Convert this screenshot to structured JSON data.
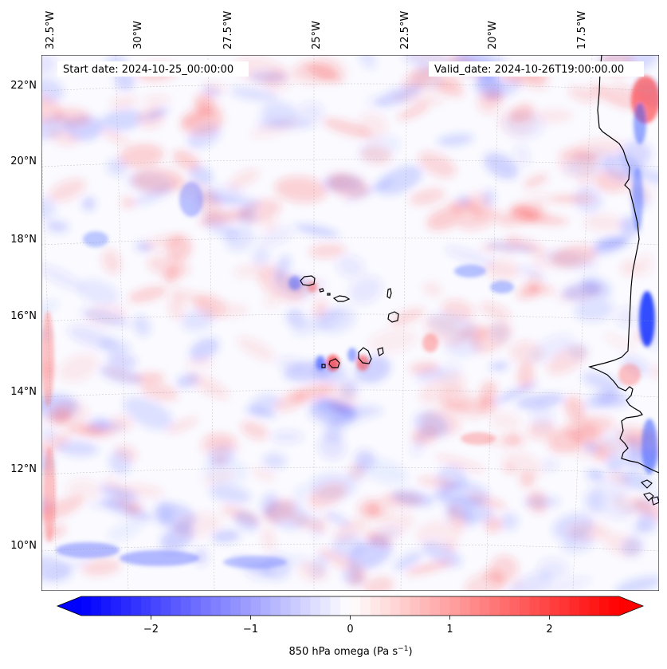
{
  "map": {
    "start_date_text": "Start date: 2024-10-25_00:00:00",
    "valid_date_text": "Valid_date: 2024-10-26T19:00:00.00",
    "longitude_labels": [
      "32.5°W",
      "30°W",
      "27.5°W",
      "25°W",
      "22.5°W",
      "20°W",
      "17.5°W"
    ],
    "latitude_labels": [
      "22°N",
      "20°N",
      "18°N",
      "16°N",
      "14°N",
      "12°N",
      "10°N"
    ],
    "grid": true,
    "colors": {
      "negative": "#0000ff",
      "zero": "#ffffff",
      "positive": "#ff0000",
      "coastline": "#000000"
    }
  },
  "colorbar": {
    "label": "850 hPa omega (Pa s",
    "label_superscript": "−1",
    "label_close": ")",
    "ticks": [
      "−2",
      "−1",
      "0",
      "1",
      "2"
    ],
    "range": [
      -2.7,
      2.7
    ],
    "tick_values": [
      -2,
      -1,
      0,
      1,
      2
    ]
  }
}
